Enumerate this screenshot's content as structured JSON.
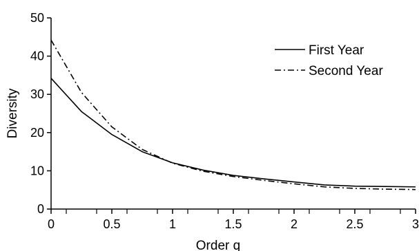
{
  "chart_data": {
    "type": "line",
    "title": "",
    "xlabel": "Order q",
    "ylabel": "Diversity",
    "xlim": [
      0,
      3
    ],
    "ylim": [
      0,
      50
    ],
    "grid": false,
    "legend_position": "top-right",
    "x_ticks": [
      "0",
      "0.5",
      "1",
      "1.5",
      "2",
      "2.5",
      "3"
    ],
    "y_ticks": [
      "0",
      "10",
      "20",
      "30",
      "40",
      "50"
    ],
    "x": [
      0,
      0.25,
      0.5,
      0.75,
      1,
      1.25,
      1.5,
      1.75,
      2,
      2.25,
      2.5,
      2.75,
      3
    ],
    "series": [
      {
        "name": "First Year",
        "style": "solid",
        "values": [
          34.2,
          25.5,
          19.5,
          15.0,
          12.1,
          10.2,
          8.8,
          7.9,
          7.1,
          6.3,
          6.0,
          5.9,
          5.8
        ]
      },
      {
        "name": "Second Year",
        "style": "dash-dot",
        "values": [
          44.2,
          30.5,
          21.5,
          15.6,
          12.0,
          9.9,
          8.5,
          7.5,
          6.6,
          5.8,
          5.4,
          5.2,
          5.1
        ]
      }
    ]
  }
}
